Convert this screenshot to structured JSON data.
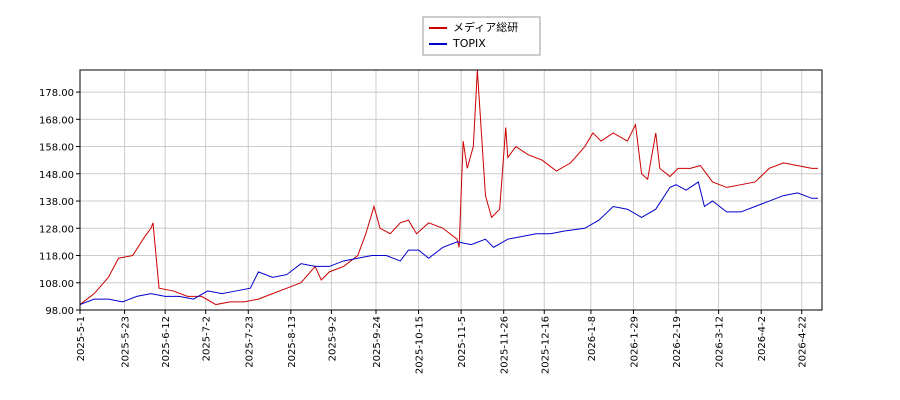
{
  "chart_data": {
    "type": "line",
    "series": [
      {
        "name": "メディア総研",
        "color": "#cc0000",
        "x": [
          "2025-5-1",
          "2025-5-8",
          "2025-5-15",
          "2025-5-20",
          "2025-5-27",
          "2025-6-2",
          "2025-6-5",
          "2025-6-6",
          "2025-6-9",
          "2025-6-16",
          "2025-6-23",
          "2025-6-30",
          "2025-7-7",
          "2025-7-14",
          "2025-7-21",
          "2025-7-28",
          "2025-8-4",
          "2025-8-11",
          "2025-8-18",
          "2025-8-25",
          "2025-8-28",
          "2025-9-1",
          "2025-9-8",
          "2025-9-15",
          "2025-9-19",
          "2025-9-23",
          "2025-9-26",
          "2025-10-1",
          "2025-10-6",
          "2025-10-10",
          "2025-10-14",
          "2025-10-20",
          "2025-10-27",
          "2025-11-3",
          "2025-11-4",
          "2025-11-6",
          "2025-11-8",
          "2025-11-11",
          "2025-11-13",
          "2025-11-17",
          "2025-11-20",
          "2025-11-24",
          "2025-11-27",
          "2025-11-28",
          "2025-12-2",
          "2025-12-8",
          "2025-12-15",
          "2025-12-22",
          "2025-12-29",
          "2026-1-5",
          "2026-1-9",
          "2026-1-13",
          "2026-1-19",
          "2026-1-26",
          "2026-1-30",
          "2026-2-2",
          "2026-2-5",
          "2026-2-9",
          "2026-2-11",
          "2026-2-16",
          "2026-2-20",
          "2026-2-26",
          "2026-3-3",
          "2026-3-9",
          "2026-3-16",
          "2026-3-23",
          "2026-3-30",
          "2026-4-6",
          "2026-4-13",
          "2026-4-20",
          "2026-4-27",
          "2026-4-30"
        ],
        "values": [
          100,
          104,
          110,
          117,
          118,
          125,
          128,
          130,
          106,
          105,
          103,
          103,
          100,
          101,
          101,
          102,
          104,
          106,
          108,
          114,
          109,
          112,
          114,
          118,
          126,
          136,
          128,
          126,
          130,
          131,
          126,
          130,
          128,
          124,
          121,
          160,
          150,
          158,
          186,
          140,
          132,
          135,
          165,
          154,
          158,
          155,
          153,
          149,
          152,
          158,
          163,
          160,
          163,
          160,
          166,
          148,
          146,
          163,
          150,
          147,
          150,
          150,
          151,
          145,
          143,
          144,
          145,
          150,
          152,
          151,
          150,
          150
        ]
      },
      {
        "name": "TOPIX",
        "color": "#0000cc",
        "x": [
          "2025-5-1",
          "2025-5-8",
          "2025-5-15",
          "2025-5-22",
          "2025-5-29",
          "2025-6-5",
          "2025-6-12",
          "2025-6-19",
          "2025-6-26",
          "2025-7-3",
          "2025-7-10",
          "2025-7-17",
          "2025-7-24",
          "2025-7-28",
          "2025-8-4",
          "2025-8-11",
          "2025-8-18",
          "2025-8-25",
          "2025-9-1",
          "2025-9-8",
          "2025-9-15",
          "2025-9-22",
          "2025-9-29",
          "2025-10-6",
          "2025-10-10",
          "2025-10-15",
          "2025-10-20",
          "2025-10-27",
          "2025-11-3",
          "2025-11-10",
          "2025-11-17",
          "2025-11-21",
          "2025-11-28",
          "2025-12-5",
          "2025-12-12",
          "2025-12-19",
          "2025-12-26",
          "2026-1-5",
          "2026-1-12",
          "2026-1-19",
          "2026-1-26",
          "2026-2-2",
          "2026-2-9",
          "2026-2-16",
          "2026-2-19",
          "2026-2-24",
          "2026-3-2",
          "2026-3-5",
          "2026-3-9",
          "2026-3-16",
          "2026-3-23",
          "2026-3-30",
          "2026-4-6",
          "2026-4-13",
          "2026-4-20",
          "2026-4-27",
          "2026-4-30"
        ],
        "values": [
          100,
          102,
          102,
          101,
          103,
          104,
          103,
          103,
          102,
          105,
          104,
          105,
          106,
          112,
          110,
          111,
          115,
          114,
          114,
          116,
          117,
          118,
          118,
          116,
          120,
          120,
          117,
          121,
          123,
          122,
          124,
          121,
          124,
          125,
          126,
          126,
          127,
          128,
          131,
          136,
          135,
          132,
          135,
          143,
          144,
          142,
          145,
          136,
          138,
          134,
          134,
          136,
          138,
          140,
          141,
          139,
          139
        ]
      }
    ],
    "xlim": [
      "2025-5-1",
      "2026-5-2"
    ],
    "xticks": [
      "2025-5-1",
      "2025-5-23",
      "2025-6-12",
      "2025-7-2",
      "2025-7-23",
      "2025-8-13",
      "2025-9-2",
      "2025-9-24",
      "2025-10-15",
      "2025-11-5",
      "2025-11-26",
      "2025-12-16",
      "2026-1-8",
      "2026-1-29",
      "2026-2-19",
      "2026-3-12",
      "2026-4-2",
      "2026-4-22"
    ],
    "ylim": [
      98,
      186.1
    ],
    "yticks": [
      {
        "value": 98,
        "label": "98.00"
      },
      {
        "value": 108,
        "label": "108.00"
      },
      {
        "value": 118,
        "label": "118.00"
      },
      {
        "value": 128,
        "label": "128.00"
      },
      {
        "value": 138,
        "label": "138.00"
      },
      {
        "value": 148,
        "label": "148.00"
      },
      {
        "value": 158,
        "label": "158.00"
      },
      {
        "value": 168,
        "label": "168.00"
      },
      {
        "value": 178,
        "label": "178.00"
      }
    ],
    "grid": true,
    "legend": "top"
  }
}
